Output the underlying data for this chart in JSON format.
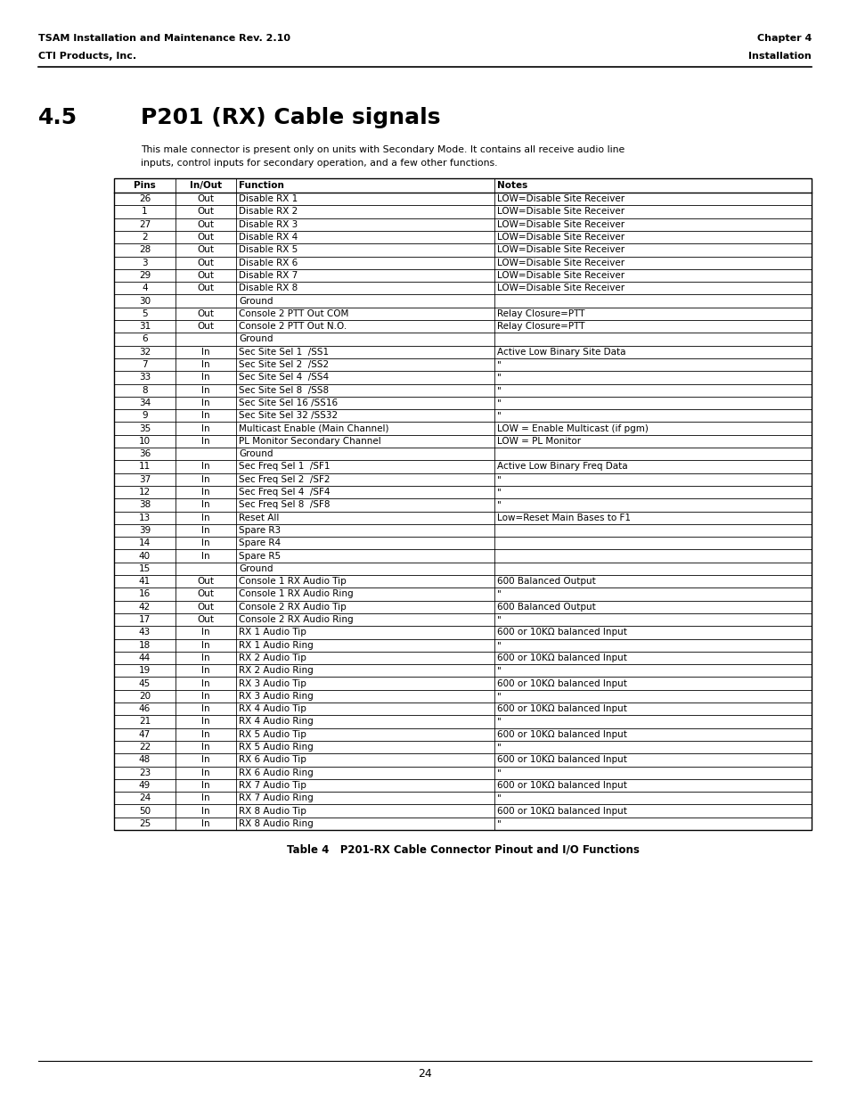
{
  "header_left_line1": "TSAM Installation and Maintenance Rev. 2.10",
  "header_left_line2": "CTI Products, Inc.",
  "header_right_line1": "Chapter 4",
  "header_right_line2": "Installation",
  "section_number": "4.5",
  "section_title": "P201 (RX) Cable signals",
  "section_body_line1": "This male connector is present only on units with Secondary Mode. It contains all receive audio line",
  "section_body_line2": "inputs, control inputs for secondary operation, and a few other functions.",
  "table_caption": "Table 4   P201-RX Cable Connector Pinout and I/O Functions",
  "page_number": "24",
  "col_headers": [
    "Pins",
    "In/Out",
    "Function",
    "Notes"
  ],
  "rows": [
    [
      "26",
      "Out",
      "Disable RX 1",
      "LOW=Disable Site Receiver"
    ],
    [
      "1",
      "Out",
      "Disable RX 2",
      "LOW=Disable Site Receiver"
    ],
    [
      "27",
      "Out",
      "Disable RX 3",
      "LOW=Disable Site Receiver"
    ],
    [
      "2",
      "Out",
      "Disable RX 4",
      "LOW=Disable Site Receiver"
    ],
    [
      "28",
      "Out",
      "Disable RX 5",
      "LOW=Disable Site Receiver"
    ],
    [
      "3",
      "Out",
      "Disable RX 6",
      "LOW=Disable Site Receiver"
    ],
    [
      "29",
      "Out",
      "Disable RX 7",
      "LOW=Disable Site Receiver"
    ],
    [
      "4",
      "Out",
      "Disable RX 8",
      "LOW=Disable Site Receiver"
    ],
    [
      "30",
      "",
      "Ground",
      ""
    ],
    [
      "5",
      "Out",
      "Console 2 PTT Out COM",
      "Relay Closure=PTT"
    ],
    [
      "31",
      "Out",
      "Console 2 PTT Out N.O.",
      "Relay Closure=PTT"
    ],
    [
      "6",
      "",
      "Ground",
      ""
    ],
    [
      "32",
      "In",
      "Sec Site Sel 1  /SS1",
      "Active Low Binary Site Data"
    ],
    [
      "7",
      "In",
      "Sec Site Sel 2  /SS2",
      "\""
    ],
    [
      "33",
      "In",
      "Sec Site Sel 4  /SS4",
      "\""
    ],
    [
      "8",
      "In",
      "Sec Site Sel 8  /SS8",
      "\""
    ],
    [
      "34",
      "In",
      "Sec Site Sel 16 /SS16",
      "\""
    ],
    [
      "9",
      "In",
      "Sec Site Sel 32 /SS32",
      "\""
    ],
    [
      "35",
      "In",
      "Multicast Enable (Main Channel)",
      "LOW = Enable Multicast (if pgm)"
    ],
    [
      "10",
      "In",
      "PL Monitor Secondary Channel",
      "LOW = PL Monitor"
    ],
    [
      "36",
      "",
      "Ground",
      ""
    ],
    [
      "11",
      "In",
      "Sec Freq Sel 1  /SF1",
      "Active Low Binary Freq Data"
    ],
    [
      "37",
      "In",
      "Sec Freq Sel 2  /SF2",
      "\""
    ],
    [
      "12",
      "In",
      "Sec Freq Sel 4  /SF4",
      "\""
    ],
    [
      "38",
      "In",
      "Sec Freq Sel 8  /SF8",
      "\""
    ],
    [
      "13",
      "In",
      "Reset All",
      "Low=Reset Main Bases to F1"
    ],
    [
      "39",
      "In",
      "Spare R3",
      ""
    ],
    [
      "14",
      "In",
      "Spare R4",
      ""
    ],
    [
      "40",
      "In",
      "Spare R5",
      ""
    ],
    [
      "15",
      "",
      "Ground",
      ""
    ],
    [
      "41",
      "Out",
      "Console 1 RX Audio Tip",
      "600 Balanced Output"
    ],
    [
      "16",
      "Out",
      "Console 1 RX Audio Ring",
      "\""
    ],
    [
      "42",
      "Out",
      "Console 2 RX Audio Tip",
      "600 Balanced Output"
    ],
    [
      "17",
      "Out",
      "Console 2 RX Audio Ring",
      "\""
    ],
    [
      "43",
      "In",
      "RX 1 Audio Tip",
      "600 or 10KΩ balanced Input"
    ],
    [
      "18",
      "In",
      "RX 1 Audio Ring",
      "\""
    ],
    [
      "44",
      "In",
      "RX 2 Audio Tip",
      "600 or 10KΩ balanced Input"
    ],
    [
      "19",
      "In",
      "RX 2 Audio Ring",
      "\""
    ],
    [
      "45",
      "In",
      "RX 3 Audio Tip",
      "600 or 10KΩ balanced Input"
    ],
    [
      "20",
      "In",
      "RX 3 Audio Ring",
      "\""
    ],
    [
      "46",
      "In",
      "RX 4 Audio Tip",
      "600 or 10KΩ balanced Input"
    ],
    [
      "21",
      "In",
      "RX 4 Audio Ring",
      "\""
    ],
    [
      "47",
      "In",
      "RX 5 Audio Tip",
      "600 or 10KΩ balanced Input"
    ],
    [
      "22",
      "In",
      "RX 5 Audio Ring",
      "\""
    ],
    [
      "48",
      "In",
      "RX 6 Audio Tip",
      "600 or 10KΩ balanced Input"
    ],
    [
      "23",
      "In",
      "RX 6 Audio Ring",
      "\""
    ],
    [
      "49",
      "In",
      "RX 7 Audio Tip",
      "600 or 10KΩ balanced Input"
    ],
    [
      "24",
      "In",
      "RX 7 Audio Ring",
      "\""
    ],
    [
      "50",
      "In",
      "RX 8 Audio Tip",
      "600 or 10KΩ balanced Input"
    ],
    [
      "25",
      "In",
      "RX 8 Audio Ring",
      "\""
    ]
  ]
}
